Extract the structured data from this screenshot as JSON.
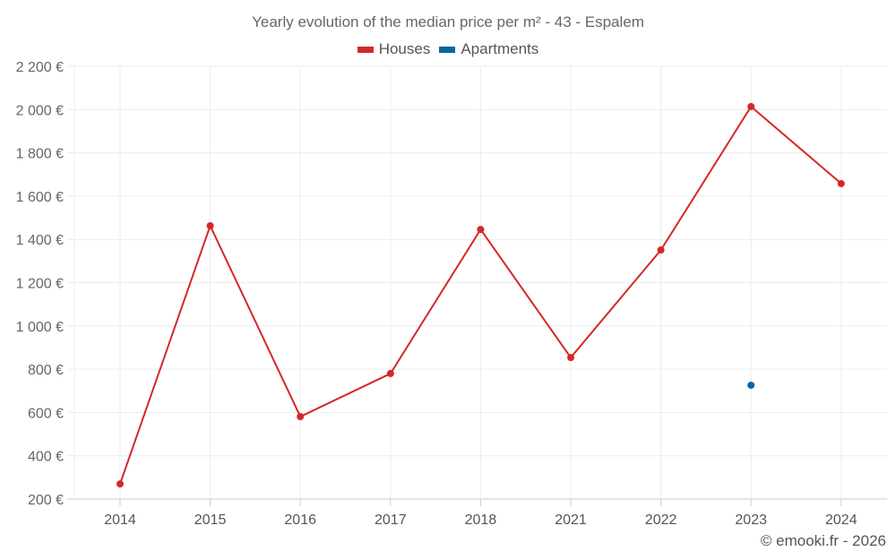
{
  "chart_data": {
    "type": "line",
    "title": "Yearly evolution of the median price per m² - 43 - Espalem",
    "categories": [
      "2014",
      "2015",
      "2016",
      "2017",
      "2018",
      "2021",
      "2022",
      "2023",
      "2024"
    ],
    "series": [
      {
        "name": "Houses",
        "color": "#d62728",
        "values": [
          270,
          1463,
          581,
          780,
          1446,
          854,
          1351,
          2014,
          1658
        ]
      },
      {
        "name": "Apartments",
        "color": "#0a64a0",
        "values": [
          null,
          null,
          null,
          null,
          null,
          null,
          null,
          726,
          null
        ]
      }
    ],
    "ylim": [
      200,
      2200
    ],
    "yticks": [
      200,
      400,
      600,
      800,
      1000,
      1200,
      1400,
      1600,
      1800,
      2000,
      2200
    ],
    "ytick_labels": [
      "200 €",
      "400 €",
      "600 €",
      "800 €",
      "1 000 €",
      "1 200 €",
      "1 400 €",
      "1 600 €",
      "1 800 €",
      "2 000 €",
      "2 200 €"
    ],
    "grid": true,
    "legend_position": "top-center",
    "xlabel": "",
    "ylabel": ""
  },
  "credit": "© emooki.fr - 2026"
}
